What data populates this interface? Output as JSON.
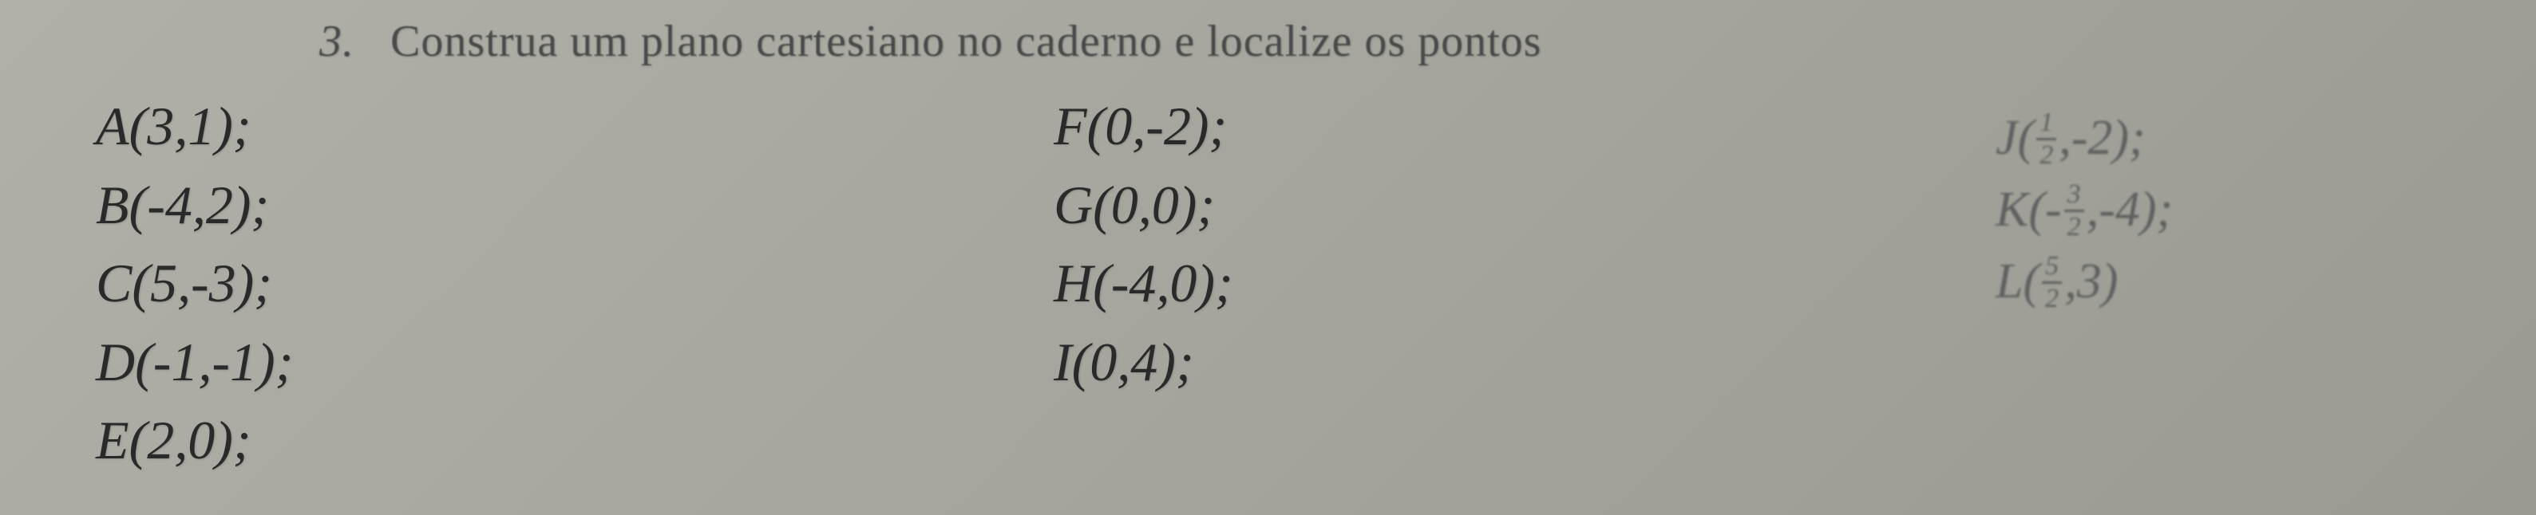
{
  "question": {
    "number": "3.",
    "text": "Construa um plano cartesiano no caderno e localize os pontos"
  },
  "columns": {
    "left": [
      {
        "label": "A",
        "coords": "(3,1);"
      },
      {
        "label": "B",
        "coords": "(-4,2);"
      },
      {
        "label": "C",
        "coords": "(5,-3);"
      },
      {
        "label": "D",
        "coords": "(-1,-1);"
      },
      {
        "label": "E",
        "coords": "(2,0);"
      }
    ],
    "mid": [
      {
        "label": "F",
        "coords": "(0,-2);"
      },
      {
        "label": "G",
        "coords": "(0,0);"
      },
      {
        "label": "H",
        "coords": "(-4,0);"
      },
      {
        "label": "I",
        "coords": "(0,4);"
      }
    ],
    "right": [
      {
        "label": "J",
        "prefix": "(",
        "frac_num": "1",
        "frac_den": "2",
        "mid": ",-2);",
        "has_leading_neg": false
      },
      {
        "label": "K",
        "prefix": "(-",
        "frac_num": "3",
        "frac_den": "2",
        "mid": ",-4);",
        "has_leading_neg": true
      },
      {
        "label": "L",
        "prefix": "(",
        "frac_num": "5",
        "frac_den": "2",
        "mid": ",3)",
        "has_leading_neg": false
      }
    ]
  },
  "style": {
    "background_color": "#a8a8a0",
    "text_color": "#2a2a2a",
    "faded_text_color": "#606060",
    "font_family": "Times New Roman",
    "base_fontsize_pt": 52,
    "question_fontsize_pt": 42
  }
}
